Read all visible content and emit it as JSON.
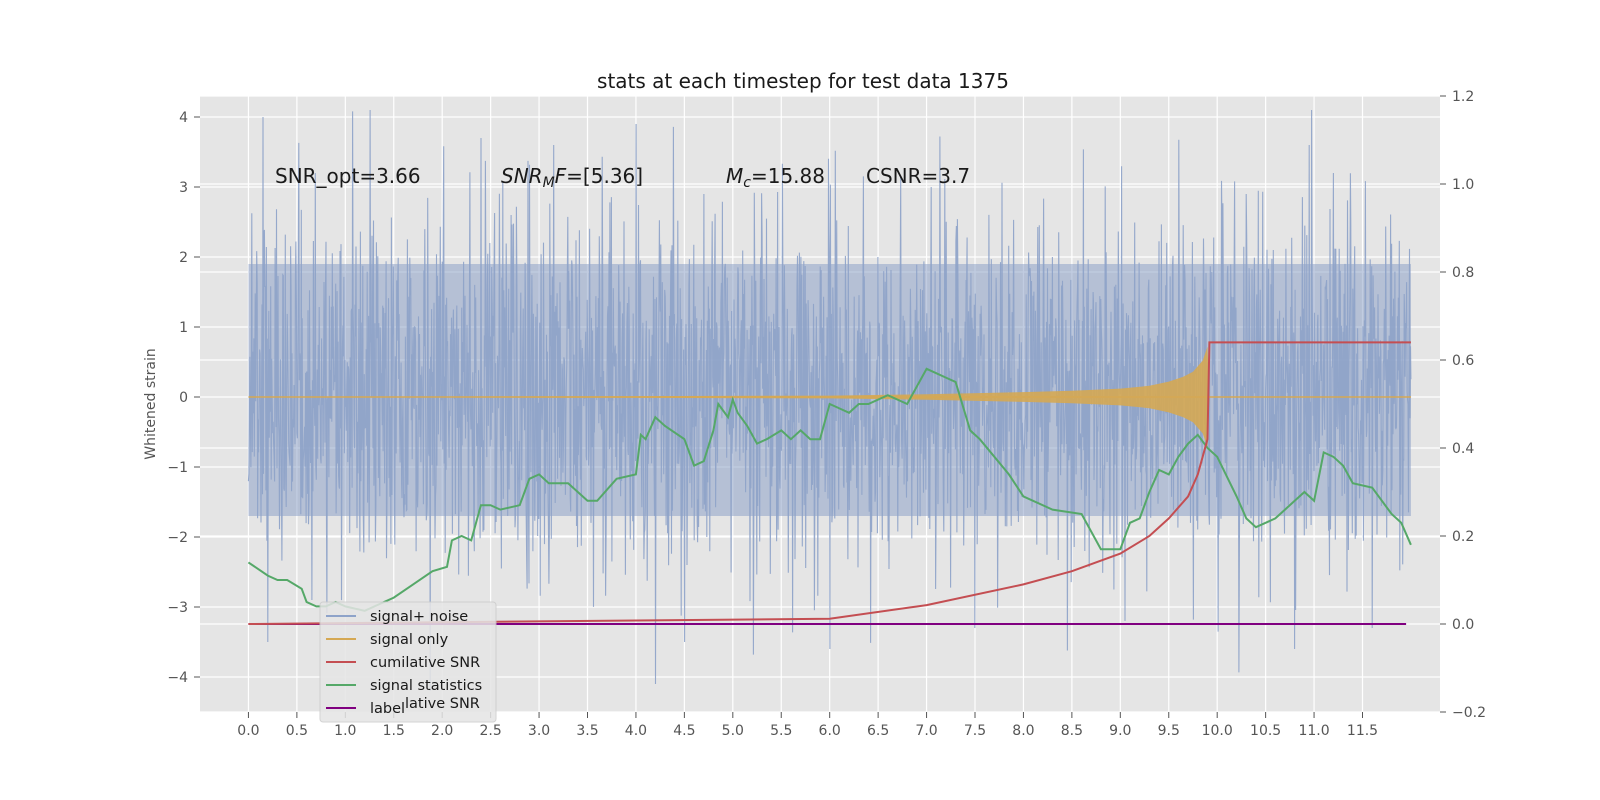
{
  "chart_data": {
    "type": "line",
    "title": "stats at each timestep for test data 1375",
    "ylabel": "Whitened strain",
    "xlabel": "",
    "xlim": [
      -0.5,
      12.3
    ],
    "ylim": [
      -4.5,
      4.3
    ],
    "y2lim": [
      -0.2,
      1.2
    ],
    "x_ticks": [
      "0.0",
      "0.5",
      "1.0",
      "1.5",
      "2.0",
      "2.5",
      "3.0",
      "3.5",
      "4.0",
      "4.5",
      "5.0",
      "5.5",
      "6.0",
      "6.5",
      "7.0",
      "7.5",
      "8.0",
      "8.5",
      "9.0",
      "9.5",
      "10.0",
      "10.5",
      "11.0",
      "11.5"
    ],
    "y_ticks": [
      "4",
      "3",
      "2",
      "1",
      "0",
      "−1",
      "−2",
      "−3",
      "−4"
    ],
    "y2_ticks": [
      "1.2",
      "1.0",
      "0.8",
      "0.6",
      "0.4",
      "0.2",
      "0.0",
      "−0.2"
    ],
    "grid": true,
    "legend_position": "lower-left",
    "annotations": {
      "snr_opt": "SNR_opt=3.66",
      "snr_mf": "=[5.36]",
      "mc": "=15.88",
      "csnr": "CSNR=3.7"
    },
    "series": [
      {
        "name": "signal+ noise",
        "axis": "left",
        "color": "#8ea3c9",
        "x_range": [
          0.0,
          12.0
        ],
        "band_low": -1.7,
        "band_high": 1.9,
        "peaks": [
          [
            0.15,
            4.0
          ],
          [
            2.4,
            3.7
          ],
          [
            3.15,
            3.6
          ],
          [
            4.0,
            3.9
          ],
          [
            4.7,
            2.9
          ],
          [
            7.05,
            3.0
          ],
          [
            10.3,
            2.9
          ],
          [
            10.95,
            3.6
          ],
          [
            11.2,
            3.2
          ],
          [
            4.2,
            -4.1
          ],
          [
            10.8,
            -3.6
          ],
          [
            6.0,
            -3.6
          ],
          [
            0.2,
            -3.5
          ],
          [
            4.5,
            -3.5
          ],
          [
            7.5,
            -3.3
          ],
          [
            9.05,
            -3.2
          ],
          [
            11.6,
            -3.3
          ]
        ]
      },
      {
        "name": "signal only",
        "axis": "left",
        "color": "#d5a853",
        "x": [
          0.0,
          6.0,
          7.0,
          8.0,
          8.5,
          9.0,
          9.3,
          9.5,
          9.65,
          9.75,
          9.85,
          9.9,
          9.92,
          12.0
        ],
        "y": [
          0.0,
          0.02,
          0.04,
          0.07,
          0.09,
          0.12,
          0.16,
          0.22,
          0.29,
          0.36,
          0.52,
          0.72,
          0.0,
          0.0
        ]
      },
      {
        "name": "cumilative SNR",
        "axis": "right",
        "color": "#c44e52",
        "x": [
          0.0,
          2.0,
          4.0,
          6.0,
          7.0,
          8.0,
          8.5,
          9.0,
          9.3,
          9.5,
          9.7,
          9.8,
          9.9,
          9.92,
          12.0
        ],
        "y": [
          0.0,
          0.004,
          0.008,
          0.012,
          0.043,
          0.09,
          0.12,
          0.16,
          0.2,
          0.24,
          0.29,
          0.34,
          0.42,
          0.64,
          0.64
        ]
      },
      {
        "name": "signal statistics",
        "axis": "right",
        "color": "#55a868",
        "x": [
          0.0,
          0.2,
          0.3,
          0.4,
          0.55,
          0.6,
          0.7,
          0.8,
          0.9,
          1.0,
          1.2,
          1.5,
          1.7,
          1.9,
          2.05,
          2.1,
          2.2,
          2.3,
          2.4,
          2.5,
          2.6,
          2.8,
          2.9,
          3.0,
          3.1,
          3.3,
          3.5,
          3.6,
          3.8,
          4.0,
          4.05,
          4.1,
          4.2,
          4.3,
          4.5,
          4.6,
          4.7,
          4.8,
          4.85,
          4.95,
          5.0,
          5.05,
          5.15,
          5.25,
          5.35,
          5.5,
          5.6,
          5.7,
          5.8,
          5.9,
          6.0,
          6.1,
          6.2,
          6.3,
          6.4,
          6.6,
          6.8,
          6.9,
          7.0,
          7.1,
          7.2,
          7.3,
          7.45,
          7.55,
          7.7,
          7.85,
          8.0,
          8.3,
          8.6,
          8.8,
          9.0,
          9.1,
          9.2,
          9.3,
          9.4,
          9.5,
          9.6,
          9.7,
          9.8,
          9.9,
          10.0,
          10.2,
          10.3,
          10.4,
          10.5,
          10.6,
          10.7,
          10.8,
          10.9,
          11.0,
          11.1,
          11.2,
          11.3,
          11.4,
          11.6,
          11.8,
          11.9,
          12.0
        ],
        "y": [
          0.14,
          0.11,
          0.1,
          0.1,
          0.08,
          0.05,
          0.04,
          0.04,
          0.05,
          0.04,
          0.03,
          0.06,
          0.09,
          0.12,
          0.13,
          0.19,
          0.2,
          0.19,
          0.27,
          0.27,
          0.26,
          0.27,
          0.33,
          0.34,
          0.32,
          0.32,
          0.28,
          0.28,
          0.33,
          0.34,
          0.43,
          0.42,
          0.47,
          0.45,
          0.42,
          0.36,
          0.37,
          0.44,
          0.5,
          0.47,
          0.51,
          0.48,
          0.45,
          0.41,
          0.42,
          0.44,
          0.42,
          0.44,
          0.42,
          0.42,
          0.5,
          0.49,
          0.48,
          0.5,
          0.5,
          0.52,
          0.5,
          0.54,
          0.58,
          0.57,
          0.56,
          0.55,
          0.44,
          0.42,
          0.38,
          0.34,
          0.29,
          0.26,
          0.25,
          0.17,
          0.17,
          0.23,
          0.24,
          0.3,
          0.35,
          0.34,
          0.38,
          0.41,
          0.43,
          0.4,
          0.38,
          0.29,
          0.24,
          0.22,
          0.23,
          0.24,
          0.26,
          0.28,
          0.3,
          0.28,
          0.39,
          0.38,
          0.36,
          0.32,
          0.31,
          0.25,
          0.23,
          0.18
        ]
      },
      {
        "name": "label",
        "axis": "right",
        "color": "#800080",
        "x": [
          0.0,
          11.95
        ],
        "y": [
          0.0,
          0.0
        ]
      }
    ],
    "hidden_legend_fragment": "lative SNR"
  }
}
